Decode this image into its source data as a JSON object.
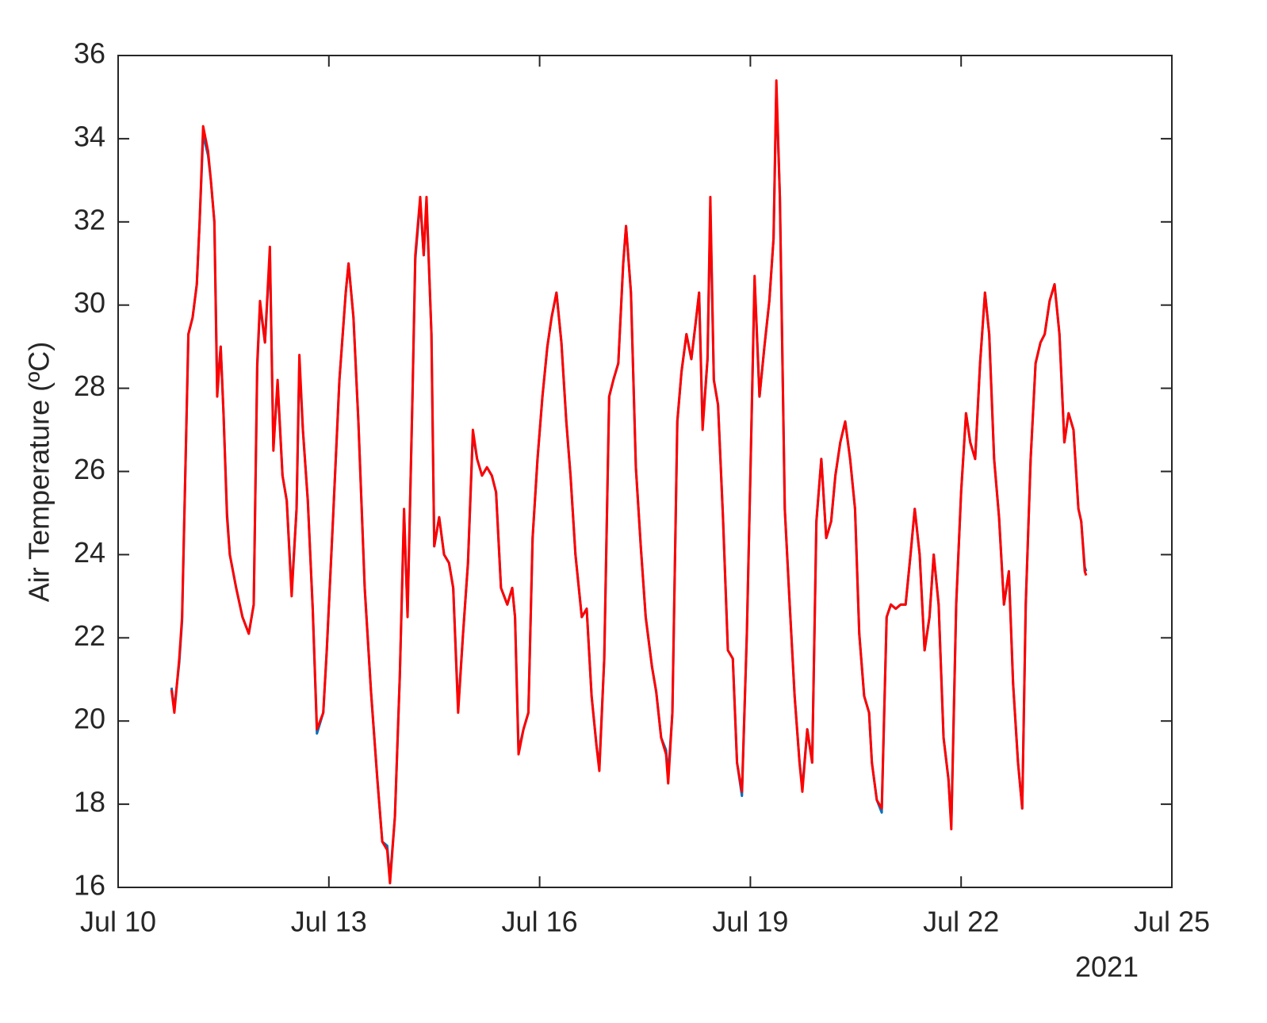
{
  "chart_data": {
    "type": "line",
    "y_label": "Air Temperature (ºC)",
    "x_secondary_label": "2021",
    "xlim": [
      10,
      25
    ],
    "xticks": [
      {
        "value": 10,
        "label": "Jul 10"
      },
      {
        "value": 13,
        "label": "Jul 13"
      },
      {
        "value": 16,
        "label": "Jul 16"
      },
      {
        "value": 19,
        "label": "Jul 19"
      },
      {
        "value": 22,
        "label": "Jul 22"
      },
      {
        "value": 25,
        "label": "Jul 25"
      }
    ],
    "ylim": [
      16,
      36
    ],
    "yticks": [
      16,
      18,
      20,
      22,
      24,
      26,
      28,
      30,
      32,
      34,
      36
    ],
    "grid": false,
    "x": [
      10.76,
      10.8,
      10.87,
      10.91,
      10.97,
      11.0,
      11.06,
      11.12,
      11.16,
      11.21,
      11.28,
      11.32,
      11.37,
      11.41,
      11.46,
      11.5,
      11.55,
      11.59,
      11.68,
      11.77,
      11.86,
      11.93,
      11.98,
      12.02,
      12.09,
      12.16,
      12.21,
      12.27,
      12.34,
      12.4,
      12.47,
      12.54,
      12.58,
      12.63,
      12.7,
      12.77,
      12.83,
      12.92,
      12.97,
      13.06,
      13.15,
      13.24,
      13.28,
      13.35,
      13.42,
      13.51,
      13.6,
      13.69,
      13.76,
      13.83,
      13.87,
      13.94,
      14.01,
      14.07,
      14.12,
      14.19,
      14.23,
      14.3,
      14.35,
      14.39,
      14.46,
      14.5,
      14.57,
      14.64,
      14.71,
      14.77,
      14.84,
      14.91,
      14.98,
      15.05,
      15.11,
      15.18,
      15.25,
      15.32,
      15.38,
      15.45,
      15.54,
      15.61,
      15.65,
      15.7,
      15.77,
      15.84,
      15.9,
      15.97,
      16.04,
      16.11,
      16.17,
      16.24,
      16.31,
      16.38,
      16.44,
      16.51,
      16.6,
      16.67,
      16.74,
      16.81,
      16.85,
      16.92,
      16.99,
      17.05,
      17.12,
      17.19,
      17.23,
      17.3,
      17.37,
      17.44,
      17.51,
      17.6,
      17.66,
      17.73,
      17.8,
      17.83,
      17.89,
      17.96,
      18.02,
      18.09,
      18.16,
      18.23,
      18.27,
      18.32,
      18.39,
      18.43,
      18.48,
      18.54,
      18.61,
      18.68,
      18.75,
      18.81,
      18.88,
      18.95,
      19.0,
      19.06,
      19.13,
      19.2,
      19.27,
      19.33,
      19.37,
      19.42,
      19.49,
      19.56,
      19.63,
      19.7,
      19.74,
      19.81,
      19.88,
      19.94,
      20.01,
      20.08,
      20.15,
      20.21,
      20.28,
      20.35,
      20.42,
      20.49,
      20.55,
      20.62,
      20.69,
      20.73,
      20.8,
      20.87,
      20.94,
      21.0,
      21.07,
      21.14,
      21.21,
      21.28,
      21.34,
      21.41,
      21.48,
      21.55,
      21.61,
      21.68,
      21.75,
      21.82,
      21.86,
      21.93,
      22.0,
      22.07,
      22.13,
      22.2,
      22.27,
      22.34,
      22.4,
      22.47,
      22.54,
      22.61,
      22.68,
      22.74,
      22.81,
      22.87,
      22.92,
      22.99,
      23.06,
      23.13,
      23.19,
      23.26,
      23.33,
      23.4,
      23.47,
      23.53,
      23.6,
      23.67,
      23.71,
      23.76,
      23.78
    ],
    "series": [
      {
        "color": "#0072bd",
        "values": [
          20.8,
          20.3,
          21.4,
          22.4,
          27.0,
          29.3,
          29.7,
          30.5,
          32.0,
          34.1,
          33.6,
          33.0,
          32.0,
          28.0,
          29.0,
          27.4,
          25.0,
          24.0,
          23.2,
          22.5,
          22.1,
          22.8,
          28.5,
          30.0,
          29.1,
          31.2,
          26.6,
          28.1,
          25.9,
          25.3,
          23.1,
          25.1,
          28.6,
          27.0,
          25.3,
          22.7,
          19.7,
          20.2,
          21.7,
          24.9,
          28.2,
          30.3,
          31.0,
          29.7,
          27.2,
          23.2,
          20.7,
          18.6,
          17.1,
          17.0,
          16.2,
          17.7,
          21.1,
          25.0,
          22.6,
          27.8,
          31.1,
          32.5,
          31.2,
          32.5,
          29.3,
          24.2,
          24.9,
          24.0,
          23.8,
          23.2,
          20.3,
          22.1,
          23.8,
          26.9,
          26.3,
          25.9,
          26.1,
          25.9,
          25.5,
          23.2,
          22.8,
          23.2,
          22.5,
          19.3,
          19.8,
          20.2,
          24.4,
          26.3,
          27.8,
          29.0,
          29.7,
          30.3,
          29.1,
          27.2,
          25.9,
          24.0,
          22.5,
          22.7,
          20.6,
          19.4,
          18.9,
          21.5,
          27.8,
          28.2,
          28.6,
          31.0,
          31.9,
          30.3,
          26.1,
          24.2,
          22.5,
          21.3,
          20.7,
          19.6,
          19.3,
          18.7,
          20.2,
          27.2,
          28.4,
          29.3,
          28.7,
          29.7,
          30.3,
          27.1,
          28.7,
          32.3,
          28.2,
          27.6,
          24.9,
          21.7,
          21.5,
          19.0,
          18.2,
          22.1,
          25.9,
          30.6,
          27.8,
          29.0,
          30.1,
          31.6,
          35.2,
          32.6,
          25.1,
          22.8,
          20.6,
          19.0,
          18.4,
          19.8,
          19.0,
          24.8,
          26.3,
          24.4,
          24.8,
          25.9,
          26.7,
          27.2,
          26.3,
          25.1,
          22.1,
          20.6,
          20.2,
          19.0,
          18.1,
          17.8,
          22.5,
          22.8,
          22.7,
          22.8,
          22.8,
          24.0,
          25.1,
          24.0,
          21.7,
          22.5,
          24.0,
          22.8,
          19.6,
          18.6,
          17.5,
          22.8,
          25.5,
          27.4,
          26.7,
          26.3,
          28.6,
          30.3,
          29.3,
          26.3,
          24.9,
          22.8,
          23.6,
          20.9,
          19.0,
          17.9,
          22.8,
          26.3,
          28.6,
          29.1,
          29.3,
          30.1,
          30.5,
          29.3,
          26.7,
          27.4,
          27.0,
          25.1,
          24.8,
          23.7,
          23.6
        ]
      },
      {
        "color": "#ff0000",
        "values": [
          20.75,
          20.2,
          21.5,
          22.5,
          27.0,
          29.3,
          29.7,
          30.5,
          32.0,
          34.3,
          33.7,
          33.0,
          32.0,
          27.8,
          29.0,
          27.4,
          24.9,
          24.0,
          23.2,
          22.5,
          22.1,
          22.8,
          28.6,
          30.1,
          29.1,
          31.4,
          26.5,
          28.2,
          25.9,
          25.3,
          23.0,
          25.1,
          28.8,
          27.0,
          25.3,
          22.7,
          19.8,
          20.2,
          21.7,
          24.9,
          28.2,
          30.3,
          31.0,
          29.7,
          27.2,
          23.2,
          20.7,
          18.6,
          17.1,
          16.9,
          16.1,
          17.7,
          21.1,
          25.1,
          22.5,
          27.8,
          31.2,
          32.6,
          31.2,
          32.6,
          29.3,
          24.2,
          24.9,
          24.0,
          23.8,
          23.2,
          20.2,
          22.1,
          23.8,
          27.0,
          26.3,
          25.9,
          26.1,
          25.9,
          25.5,
          23.2,
          22.8,
          23.2,
          22.5,
          19.2,
          19.8,
          20.2,
          24.4,
          26.3,
          27.8,
          29.0,
          29.7,
          30.3,
          29.1,
          27.2,
          25.9,
          24.0,
          22.5,
          22.7,
          20.6,
          19.4,
          18.8,
          21.5,
          27.8,
          28.2,
          28.6,
          31.0,
          31.9,
          30.3,
          26.1,
          24.2,
          22.5,
          21.3,
          20.7,
          19.6,
          19.2,
          18.5,
          20.2,
          27.2,
          28.4,
          29.3,
          28.7,
          29.7,
          30.3,
          27.0,
          28.7,
          32.6,
          28.2,
          27.6,
          24.9,
          21.7,
          21.5,
          19.0,
          18.3,
          22.1,
          25.9,
          30.7,
          27.8,
          29.0,
          30.1,
          31.6,
          35.4,
          32.6,
          25.1,
          22.8,
          20.6,
          19.0,
          18.3,
          19.8,
          19.0,
          24.8,
          26.3,
          24.4,
          24.8,
          25.9,
          26.7,
          27.2,
          26.3,
          25.1,
          22.1,
          20.6,
          20.2,
          19.0,
          18.1,
          17.9,
          22.5,
          22.8,
          22.7,
          22.8,
          22.8,
          24.0,
          25.1,
          24.0,
          21.7,
          22.5,
          24.0,
          22.8,
          19.6,
          18.6,
          17.4,
          22.8,
          25.5,
          27.4,
          26.7,
          26.3,
          28.6,
          30.3,
          29.3,
          26.3,
          24.9,
          22.8,
          23.6,
          20.9,
          19.0,
          17.9,
          22.8,
          26.3,
          28.6,
          29.1,
          29.3,
          30.1,
          30.5,
          29.3,
          26.7,
          27.4,
          27.0,
          25.1,
          24.8,
          23.6,
          23.5
        ]
      }
    ]
  }
}
